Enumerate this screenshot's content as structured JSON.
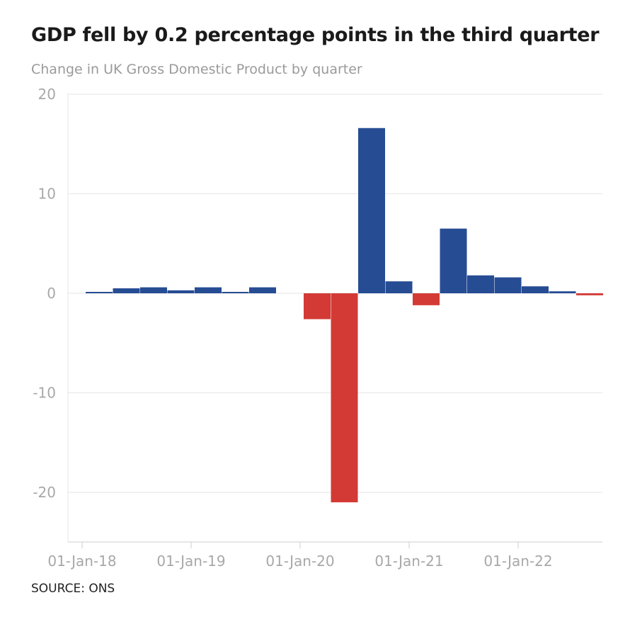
{
  "chart_data": {
    "type": "bar",
    "title": "GDP fell by 0.2 percentage points in the third quarter",
    "subtitle": "Change in UK Gross Domestic Product by quarter",
    "source": "SOURCE: ONS",
    "xlabel": "",
    "ylabel": "",
    "ylim": [
      -25,
      20
    ],
    "y_ticks": [
      20,
      10,
      0,
      -10,
      -20
    ],
    "y_tick_labels": [
      "20",
      "10",
      "0",
      "-10",
      "-20"
    ],
    "x_tick_labels": [
      "01-Jan-18",
      "01-Jan-19",
      "01-Jan-20",
      "01-Jan-21",
      "01-Jan-22"
    ],
    "grid": true,
    "legend": "none",
    "colors": {
      "positive": "#264c93",
      "negative": "#d33a35",
      "grid": "#e6e6e6",
      "axis": "#cccccc"
    },
    "categories": [
      "2018 Q1",
      "2018 Q2",
      "2018 Q3",
      "2018 Q4",
      "2019 Q1",
      "2019 Q2",
      "2019 Q3",
      "2019 Q4",
      "2020 Q1",
      "2020 Q2",
      "2020 Q3",
      "2020 Q4",
      "2021 Q1",
      "2021 Q2",
      "2021 Q3",
      "2021 Q4",
      "2022 Q1",
      "2022 Q2",
      "2022 Q3"
    ],
    "values": [
      0.1,
      0.5,
      0.6,
      0.3,
      0.6,
      0.1,
      0.6,
      0.0,
      -2.6,
      -21.0,
      16.6,
      1.2,
      -1.2,
      6.5,
      1.8,
      1.6,
      0.7,
      0.2,
      -0.2
    ]
  }
}
